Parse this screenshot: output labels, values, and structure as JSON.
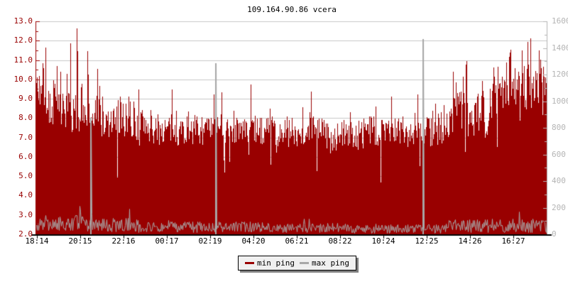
{
  "chart_data": {
    "type": "area",
    "title": "109.164.90.86 vcera",
    "grid": true,
    "legend_position": "bottom-center",
    "left_axis": {
      "min": 2.0,
      "max": 13.0,
      "major_step": 1.0,
      "minor_step": 0.5,
      "color": "#990000",
      "labels": [
        "13.0",
        "12.0",
        "11.0",
        "10.0",
        "9.0",
        "8.0",
        "7.0",
        "6.0",
        "5.0",
        "4.0",
        "3.0",
        "2.0"
      ]
    },
    "right_axis": {
      "min": 0,
      "max": 1600,
      "major_step": 200,
      "minor_step": 100,
      "color": "#b4b4b4",
      "labels": [
        "1600",
        "1400",
        "1200",
        "1000",
        "800",
        "600",
        "400",
        "200",
        "0"
      ]
    },
    "x_axis": {
      "labels": [
        "18:14",
        "20:15",
        "22:16",
        "00:17",
        "02:19",
        "04:20",
        "06:21",
        "08:22",
        "10:24",
        "12:25",
        "14:26",
        "16:27"
      ],
      "color": "#000000"
    },
    "legend": {
      "items": [
        {
          "label": "min ping",
          "color": "#990000"
        },
        {
          "label": "max ping",
          "color": "#a8a8a8"
        }
      ]
    },
    "seed": 7,
    "series": [
      {
        "name": "min ping",
        "draw": "area",
        "color": "#990000",
        "axis": "left",
        "envelope_segments": [
          {
            "to": 0.02,
            "base": 9.6,
            "amp": 1.6,
            "spike_p": 0.1,
            "spike_amp": 1.5
          },
          {
            "to": 0.13,
            "base": 8.1,
            "amp": 1.5,
            "spike_p": 0.2,
            "spike_amp": 3.0
          },
          {
            "to": 0.22,
            "base": 7.7,
            "amp": 1.2,
            "spike_p": 0.14,
            "spike_amp": 2.2
          },
          {
            "to": 0.33,
            "base": 7.4,
            "amp": 1.0,
            "spike_p": 0.1,
            "spike_amp": 1.9
          },
          {
            "to": 0.45,
            "base": 7.35,
            "amp": 0.9,
            "spike_p": 0.1,
            "spike_amp": 1.8
          },
          {
            "to": 0.56,
            "base": 7.3,
            "amp": 1.0,
            "spike_p": 0.1,
            "spike_amp": 2.0
          },
          {
            "to": 0.64,
            "base": 7.05,
            "amp": 1.1,
            "spike_p": 0.08,
            "spike_amp": 1.7
          },
          {
            "to": 0.73,
            "base": 7.3,
            "amp": 1.0,
            "spike_p": 0.1,
            "spike_amp": 1.8
          },
          {
            "to": 0.81,
            "base": 7.55,
            "amp": 1.2,
            "spike_p": 0.12,
            "spike_amp": 2.1
          },
          {
            "to": 0.89,
            "base": 8.2,
            "amp": 1.5,
            "spike_p": 0.15,
            "spike_amp": 2.3
          },
          {
            "to": 1.0,
            "base": 9.4,
            "amp": 1.6,
            "spike_p": 0.18,
            "spike_amp": 1.8
          }
        ],
        "dip_p": 0.05,
        "dip_amp": 2.4,
        "clamp": [
          2.1,
          12.68
        ],
        "notable_spikes": [
          {
            "x_frac": 0.079,
            "value": 12.65
          },
          {
            "x_frac": 0.1,
            "value": 11.45
          },
          {
            "x_frac": 0.961,
            "value": 11.95
          },
          {
            "x_frac": 0.983,
            "value": 11.5
          }
        ]
      },
      {
        "name": "max ping",
        "draw": "line",
        "color": "#a8a8a8",
        "axis": "left",
        "envelope_segments": [
          {
            "to": 0.1,
            "base": 2.6,
            "amp": 0.5
          },
          {
            "to": 0.2,
            "base": 2.5,
            "amp": 0.45
          },
          {
            "to": 0.45,
            "base": 2.4,
            "amp": 0.35
          },
          {
            "to": 0.62,
            "base": 2.35,
            "amp": 0.3
          },
          {
            "to": 0.8,
            "base": 2.3,
            "amp": 0.3
          },
          {
            "to": 1.0,
            "base": 2.45,
            "amp": 0.45
          }
        ],
        "spike_p": 0.03,
        "spike_amp": 0.7,
        "clamp": [
          2.05,
          3.6
        ],
        "notable_spikes": [
          {
            "x_frac": 0.107,
            "value": 8.0
          },
          {
            "x_frac": 0.351,
            "value": 10.85
          },
          {
            "x_frac": 0.757,
            "value": 12.1
          }
        ]
      }
    ],
    "layout_colors": {
      "gridline": "#c8c8c8",
      "bottom_axis": "#000000",
      "background": "#ffffff"
    }
  }
}
